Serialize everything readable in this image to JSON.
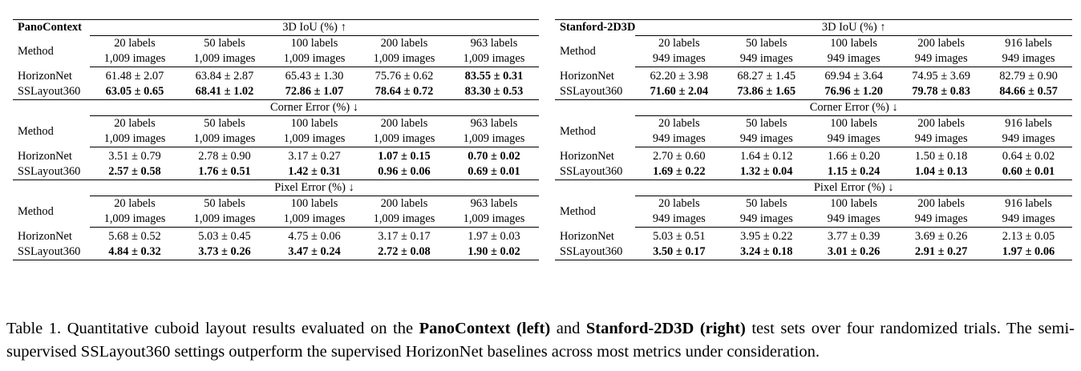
{
  "caption": {
    "label": "Table 1.",
    "text_1": "Quantitative cuboid layout results evaluated on the",
    "left_name": "PanoContext (left)",
    "text_2": "and",
    "right_name": "Stanford-2D3D (right)",
    "text_3": "test sets over four randomized trials. The semi-supervised SSLayout360 settings outperform the supervised HorizonNet baselines across most metrics under consideration."
  },
  "tables": [
    {
      "dataset": "PanoContext",
      "method_header": "Method",
      "columns": [
        {
          "labels": "20 labels",
          "images": "1,009 images"
        },
        {
          "labels": "50 labels",
          "images": "1,009 images"
        },
        {
          "labels": "100 labels",
          "images": "1,009 images"
        },
        {
          "labels": "200 labels",
          "images": "1,009 images"
        },
        {
          "labels": "963 labels",
          "images": "1,009 images"
        }
      ],
      "blocks": [
        {
          "metric": "3D IoU (%) ↑",
          "rows": [
            {
              "method": "HorizonNet",
              "cells": [
                {
                  "v": "61.48 ± 2.07",
                  "bold": false
                },
                {
                  "v": "63.84 ± 2.87",
                  "bold": false
                },
                {
                  "v": "65.43 ± 1.30",
                  "bold": false
                },
                {
                  "v": "75.76 ± 0.62",
                  "bold": false
                },
                {
                  "v": "83.55 ± 0.31",
                  "bold": true
                }
              ]
            },
            {
              "method": "SSLayout360",
              "cells": [
                {
                  "v": "63.05 ± 0.65",
                  "bold": true
                },
                {
                  "v": "68.41 ± 1.02",
                  "bold": true
                },
                {
                  "v": "72.86 ± 1.07",
                  "bold": true
                },
                {
                  "v": "78.64 ± 0.72",
                  "bold": true
                },
                {
                  "v": "83.30 ± 0.53",
                  "bold": true
                }
              ]
            }
          ]
        },
        {
          "metric": "Corner Error (%) ↓",
          "rows": [
            {
              "method": "HorizonNet",
              "cells": [
                {
                  "v": "3.51 ± 0.79",
                  "bold": false
                },
                {
                  "v": "2.78 ± 0.90",
                  "bold": false
                },
                {
                  "v": "3.17 ± 0.27",
                  "bold": false
                },
                {
                  "v": "1.07 ± 0.15",
                  "bold": true
                },
                {
                  "v": "0.70 ± 0.02",
                  "bold": true
                }
              ]
            },
            {
              "method": "SSLayout360",
              "cells": [
                {
                  "v": "2.57 ± 0.58",
                  "bold": true
                },
                {
                  "v": "1.76 ± 0.51",
                  "bold": true
                },
                {
                  "v": "1.42 ± 0.31",
                  "bold": true
                },
                {
                  "v": "0.96 ± 0.06",
                  "bold": true
                },
                {
                  "v": "0.69 ± 0.01",
                  "bold": true
                }
              ]
            }
          ]
        },
        {
          "metric": "Pixel Error (%) ↓",
          "rows": [
            {
              "method": "HorizonNet",
              "cells": [
                {
                  "v": "5.68 ± 0.52",
                  "bold": false
                },
                {
                  "v": "5.03 ± 0.45",
                  "bold": false
                },
                {
                  "v": "4.75 ± 0.06",
                  "bold": false
                },
                {
                  "v": "3.17 ± 0.17",
                  "bold": false
                },
                {
                  "v": "1.97 ± 0.03",
                  "bold": false
                }
              ]
            },
            {
              "method": "SSLayout360",
              "cells": [
                {
                  "v": "4.84 ± 0.32",
                  "bold": true
                },
                {
                  "v": "3.73 ± 0.26",
                  "bold": true
                },
                {
                  "v": "3.47 ± 0.24",
                  "bold": true
                },
                {
                  "v": "2.72 ± 0.08",
                  "bold": true
                },
                {
                  "v": "1.90 ± 0.02",
                  "bold": true
                }
              ]
            }
          ]
        }
      ]
    },
    {
      "dataset": "Stanford-2D3D",
      "method_header": "Method",
      "columns": [
        {
          "labels": "20 labels",
          "images": "949 images"
        },
        {
          "labels": "50 labels",
          "images": "949 images"
        },
        {
          "labels": "100 labels",
          "images": "949 images"
        },
        {
          "labels": "200 labels",
          "images": "949 images"
        },
        {
          "labels": "916 labels",
          "images": "949 images"
        }
      ],
      "blocks": [
        {
          "metric": "3D IoU (%) ↑",
          "rows": [
            {
              "method": "HorizonNet",
              "cells": [
                {
                  "v": "62.20 ± 3.98",
                  "bold": false
                },
                {
                  "v": "68.27 ± 1.45",
                  "bold": false
                },
                {
                  "v": "69.94 ± 3.64",
                  "bold": false
                },
                {
                  "v": "74.95 ± 3.69",
                  "bold": false
                },
                {
                  "v": "82.79 ± 0.90",
                  "bold": false
                }
              ]
            },
            {
              "method": "SSLayout360",
              "cells": [
                {
                  "v": "71.60 ± 2.04",
                  "bold": true
                },
                {
                  "v": "73.86 ± 1.65",
                  "bold": true
                },
                {
                  "v": "76.96 ± 1.20",
                  "bold": true
                },
                {
                  "v": "79.78 ± 0.83",
                  "bold": true
                },
                {
                  "v": "84.66 ± 0.57",
                  "bold": true
                }
              ]
            }
          ]
        },
        {
          "metric": "Corner Error (%) ↓",
          "rows": [
            {
              "method": "HorizonNet",
              "cells": [
                {
                  "v": "2.70 ± 0.60",
                  "bold": false
                },
                {
                  "v": "1.64 ± 0.12",
                  "bold": false
                },
                {
                  "v": "1.66 ± 0.20",
                  "bold": false
                },
                {
                  "v": "1.50 ± 0.18",
                  "bold": false
                },
                {
                  "v": "0.64 ± 0.02",
                  "bold": false
                }
              ]
            },
            {
              "method": "SSLayout360",
              "cells": [
                {
                  "v": "1.69 ± 0.22",
                  "bold": true
                },
                {
                  "v": "1.32 ± 0.04",
                  "bold": true
                },
                {
                  "v": "1.15 ± 0.24",
                  "bold": true
                },
                {
                  "v": "1.04 ± 0.13",
                  "bold": true
                },
                {
                  "v": "0.60 ± 0.01",
                  "bold": true
                }
              ]
            }
          ]
        },
        {
          "metric": "Pixel Error (%) ↓",
          "rows": [
            {
              "method": "HorizonNet",
              "cells": [
                {
                  "v": "5.03 ± 0.51",
                  "bold": false
                },
                {
                  "v": "3.95 ± 0.22",
                  "bold": false
                },
                {
                  "v": "3.77 ± 0.39",
                  "bold": false
                },
                {
                  "v": "3.69 ± 0.26",
                  "bold": false
                },
                {
                  "v": "2.13 ± 0.05",
                  "bold": false
                }
              ]
            },
            {
              "method": "SSLayout360",
              "cells": [
                {
                  "v": "3.50 ± 0.17",
                  "bold": true
                },
                {
                  "v": "3.24 ± 0.18",
                  "bold": true
                },
                {
                  "v": "3.01 ± 0.26",
                  "bold": true
                },
                {
                  "v": "2.91 ± 0.27",
                  "bold": true
                },
                {
                  "v": "1.97 ± 0.06",
                  "bold": true
                }
              ]
            }
          ]
        }
      ]
    }
  ]
}
